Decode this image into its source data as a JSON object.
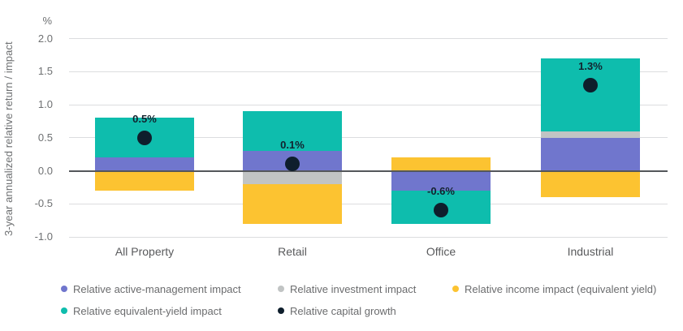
{
  "chart_data": {
    "type": "bar",
    "stacked": true,
    "title": "",
    "unit": "%",
    "ylabel": "3-year annualized relative return / impact",
    "xlabel": "",
    "categories": [
      "All Property",
      "Retail",
      "Office",
      "Industrial"
    ],
    "series": [
      {
        "name": "Relative active-management impact",
        "color": "#7076cd",
        "values": [
          0.2,
          0.3,
          -0.3,
          0.5
        ]
      },
      {
        "name": "Relative investment impact",
        "color": "#c1c4c4",
        "values": [
          0.0,
          -0.2,
          0.0,
          0.1
        ]
      },
      {
        "name": "Relative income impact (equivalent yield)",
        "color": "#fcc331",
        "values": [
          -0.3,
          -0.6,
          0.2,
          -0.4
        ]
      },
      {
        "name": "Relative equivalent-yield impact",
        "color": "#0ebdad",
        "values": [
          0.6,
          0.6,
          -0.5,
          1.1
        ]
      }
    ],
    "point_series": {
      "name": "Relative capital growth",
      "color": "#0e1e2c",
      "values": [
        0.5,
        0.1,
        -0.6,
        1.3
      ],
      "labels": [
        "0.5%",
        "0.1%",
        "-0.6%",
        "1.3%"
      ]
    },
    "y_ticks": [
      {
        "label": "2.0",
        "value": 2.0
      },
      {
        "label": "1.5",
        "value": 1.5
      },
      {
        "label": "1.0",
        "value": 1.0
      },
      {
        "label": "0.5",
        "value": 0.5
      },
      {
        "label": "0.0",
        "value": 0.0
      },
      {
        "label": "-0.5",
        "value": -0.5
      },
      {
        "label": "-1.0",
        "value": -1.0
      }
    ],
    "ylim": [
      -1.0,
      2.25
    ],
    "grid": "horizontal",
    "legend_position": "bottom",
    "legend": [
      {
        "label": "Relative active-management impact",
        "color": "#7076cd"
      },
      {
        "label": "Relative investment impact",
        "color": "#c1c4c4"
      },
      {
        "label": "Relative income impact (equivalent yield)",
        "color": "#fcc331"
      },
      {
        "label": "Relative equivalent-yield impact",
        "color": "#0ebdad"
      },
      {
        "label": "Relative capital growth",
        "color": "#0e1e2c"
      }
    ]
  }
}
